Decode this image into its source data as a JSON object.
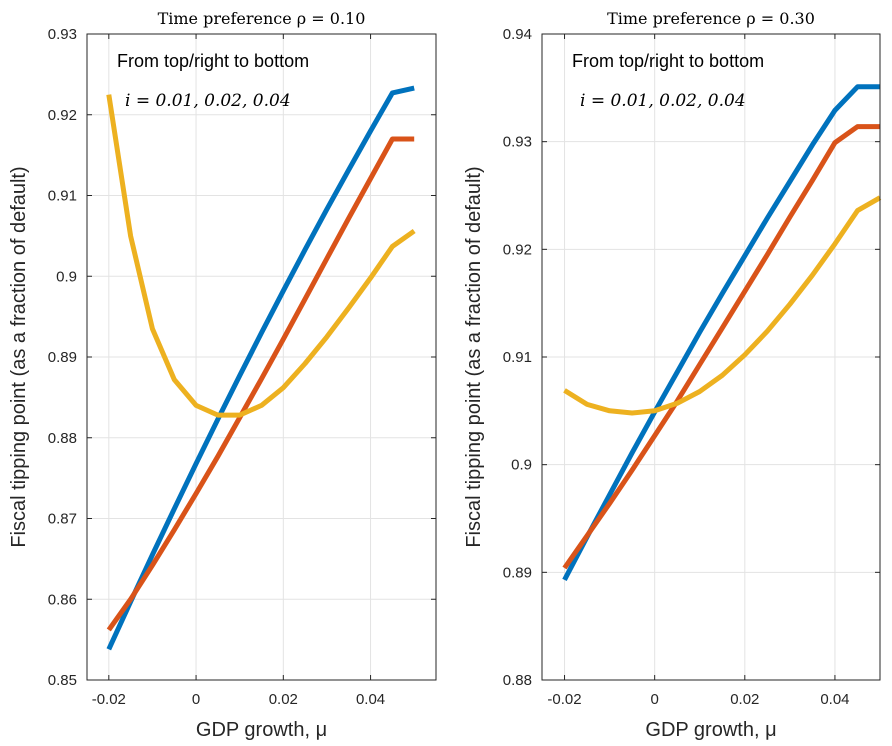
{
  "chart_data": [
    {
      "type": "line",
      "title": "Time preference ρ = 0.10",
      "xlabel": "GDP growth, μ",
      "ylabel": "Fiscal tipping point (as a fraction of default)",
      "xlim": [
        -0.025,
        0.055
      ],
      "ylim": [
        0.85,
        0.93
      ],
      "xticks": [
        "-0.02",
        "0",
        "0.02",
        "0.04"
      ],
      "yticks": [
        "0.85",
        "0.86",
        "0.87",
        "0.88",
        "0.89",
        "0.9",
        "0.91",
        "0.92",
        "0.93"
      ],
      "grid": true,
      "annotation": [
        "From top/right to bottom",
        "i = 0.01, 0.02, 0.04"
      ],
      "x": [
        -0.02,
        -0.015,
        -0.01,
        -0.005,
        0.0,
        0.005,
        0.01,
        0.015,
        0.02,
        0.025,
        0.03,
        0.035,
        0.04,
        0.045,
        0.05
      ],
      "series": [
        {
          "color": "#0072BD",
          "values": [
            0.8538,
            0.8597,
            0.8655,
            0.8712,
            0.8768,
            0.8823,
            0.8877,
            0.893,
            0.8982,
            0.9033,
            0.9083,
            0.9132,
            0.918,
            0.9227,
            0.9233
          ]
        },
        {
          "color": "#D95319",
          "values": [
            0.8562,
            0.86,
            0.8642,
            0.8686,
            0.8731,
            0.8777,
            0.8825,
            0.8873,
            0.8922,
            0.8972,
            0.9022,
            0.9072,
            0.9121,
            0.917,
            0.917
          ]
        },
        {
          "color": "#EDB120",
          "values": [
            0.9225,
            0.905,
            0.8935,
            0.8872,
            0.884,
            0.8828,
            0.8828,
            0.884,
            0.8862,
            0.8892,
            0.8925,
            0.8961,
            0.8998,
            0.9037,
            0.9056
          ]
        }
      ]
    },
    {
      "type": "line",
      "title": "Time preference ρ = 0.30",
      "xlabel": "GDP growth, μ",
      "ylabel": "Fiscal tipping point (as a fraction of default)",
      "xlim": [
        -0.025,
        0.05
      ],
      "ylim": [
        0.88,
        0.94
      ],
      "xticks": [
        "-0.02",
        "0",
        "0.02",
        "0.04"
      ],
      "yticks": [
        "0.88",
        "0.89",
        "0.9",
        "0.91",
        "0.92",
        "0.93",
        "0.94"
      ],
      "grid": true,
      "annotation": [
        "From top/right to bottom",
        "i = 0.01, 0.02, 0.04"
      ],
      "x": [
        -0.02,
        -0.015,
        -0.01,
        -0.005,
        0.0,
        0.005,
        0.01,
        0.015,
        0.02,
        0.025,
        0.03,
        0.035,
        0.04,
        0.045,
        0.05
      ],
      "series": [
        {
          "color": "#0072BD",
          "values": [
            0.8893,
            0.8933,
            0.8972,
            0.9011,
            0.9049,
            0.9086,
            0.9123,
            0.9159,
            0.9194,
            0.9229,
            0.9263,
            0.9297,
            0.9329,
            0.9351,
            0.9351
          ]
        },
        {
          "color": "#D95319",
          "values": [
            0.8904,
            0.8934,
            0.8964,
            0.8995,
            0.9027,
            0.9059,
            0.9093,
            0.9127,
            0.9161,
            0.9195,
            0.923,
            0.9264,
            0.9299,
            0.9314,
            0.9314
          ]
        },
        {
          "color": "#EDB120",
          "values": [
            0.9069,
            0.9056,
            0.905,
            0.9048,
            0.905,
            0.9057,
            0.9068,
            0.9083,
            0.9102,
            0.9124,
            0.9149,
            0.9176,
            0.9205,
            0.9236,
            0.9248
          ]
        }
      ]
    }
  ]
}
